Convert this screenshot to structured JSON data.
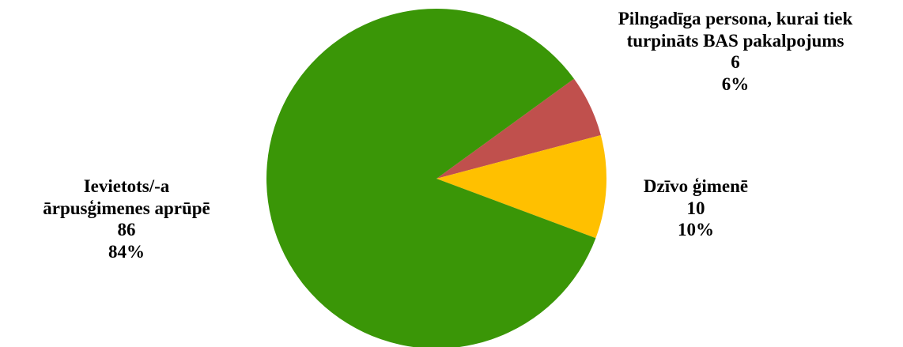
{
  "chart_data": {
    "type": "pie",
    "title": "",
    "slices": [
      {
        "label_lines": [
          "Pilngadīga persona, kurai tiek",
          "turpināts BAS pakalpojums"
        ],
        "value": 6,
        "percent_text": "6%",
        "color": "#c0504d"
      },
      {
        "label_lines": [
          "Dzīvo ģimenē"
        ],
        "value": 10,
        "percent_text": "10%",
        "color": "#ffc000"
      },
      {
        "label_lines": [
          "Ievietots/-a",
          "ārpusģimenes aprūpē"
        ],
        "value": 86,
        "percent_text": "84%",
        "color": "#3a9607"
      }
    ],
    "start_angle_deg": -36,
    "legend": "none"
  }
}
